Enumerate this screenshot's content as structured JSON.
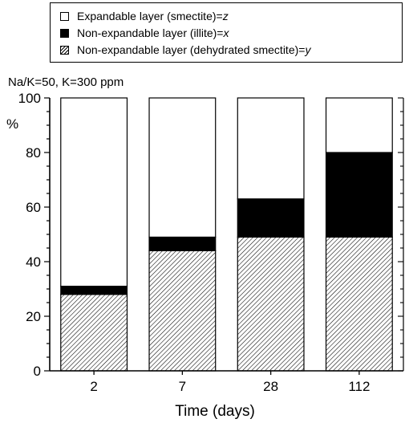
{
  "legend": {
    "items": [
      {
        "text": "Expandable layer (smectite)=",
        "var": "z",
        "swatch": "white"
      },
      {
        "text": "Non-expandable layer (illite)=",
        "var": "x",
        "swatch": "black"
      },
      {
        "text": "Non-expandable layer (dehydrated smectite)=",
        "var": "y",
        "swatch": "hatch"
      }
    ]
  },
  "condition_label": "Na/K=50, K=300 ppm",
  "chart_data": {
    "type": "bar",
    "stacked": true,
    "categories": [
      "2",
      "7",
      "28",
      "112"
    ],
    "series": [
      {
        "name": "Non-expandable layer (dehydrated smectite)=y",
        "values": [
          28,
          44,
          49,
          49
        ],
        "fill": "hatch"
      },
      {
        "name": "Non-expandable layer (illite)=x",
        "values": [
          3,
          5,
          14,
          31
        ],
        "fill": "#000000"
      },
      {
        "name": "Expandable layer (smectite)=z",
        "values": [
          69,
          51,
          37,
          20
        ],
        "fill": "#ffffff"
      }
    ],
    "xlabel": "Time (days)",
    "ylabel": "%",
    "ylim": [
      0,
      100
    ],
    "yticks": [
      0,
      20,
      40,
      60,
      80,
      100
    ],
    "grid": false
  }
}
